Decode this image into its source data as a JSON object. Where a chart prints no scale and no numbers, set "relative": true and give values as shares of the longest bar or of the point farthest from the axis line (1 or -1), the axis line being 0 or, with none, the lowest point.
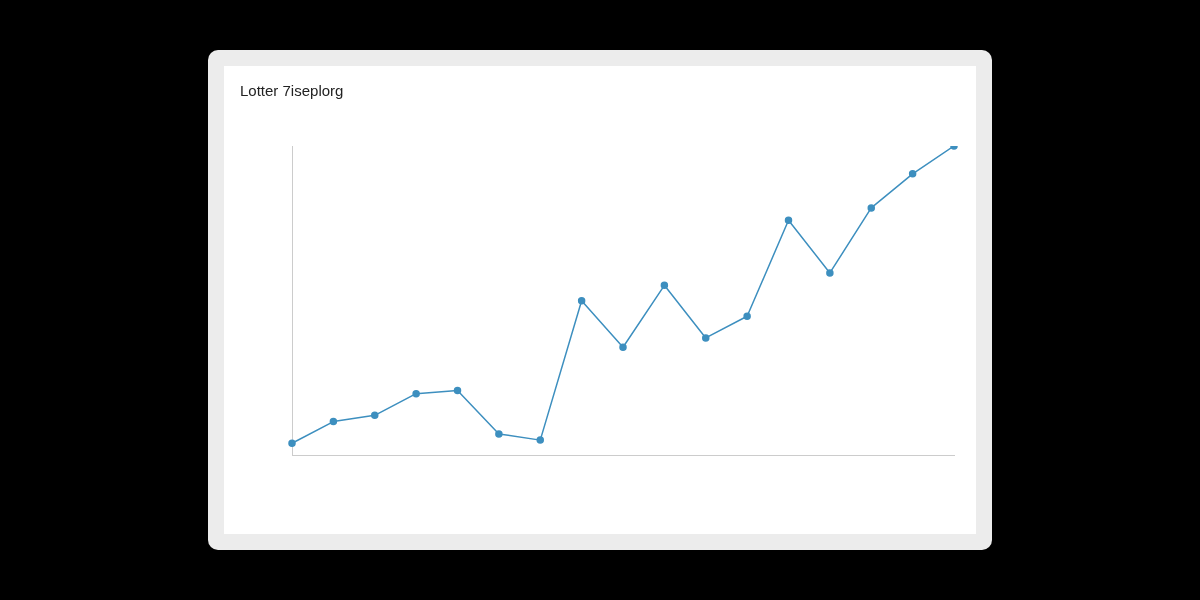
{
  "chart_data": {
    "type": "line",
    "title": "Lotter 7iseplorg",
    "relative": true,
    "categories": [
      null,
      null,
      null,
      null,
      null,
      null,
      null,
      null,
      null,
      null,
      null,
      null,
      null,
      null,
      null,
      null,
      null
    ],
    "series": [
      {
        "color": "#3d8fbf",
        "values": [
          0.04,
          0.11,
          0.13,
          0.2,
          0.21,
          0.07,
          0.05,
          0.5,
          0.35,
          0.55,
          0.38,
          0.45,
          0.76,
          0.59,
          0.8,
          0.91,
          1
        ]
      }
    ],
    "marker": "circle",
    "line_style": "solid",
    "grid": false,
    "legend": false
  }
}
